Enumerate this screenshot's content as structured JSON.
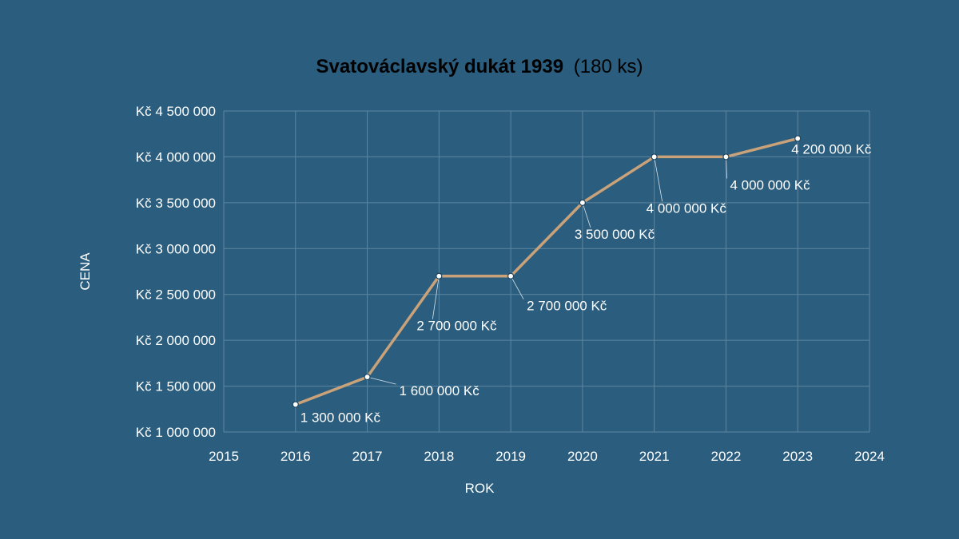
{
  "chart_data": {
    "type": "line",
    "title": "Svatováclavský dukát 1939",
    "subtitle": "(180 ks)",
    "xlabel": "ROK",
    "ylabel": "CENA",
    "x": [
      2016,
      2017,
      2018,
      2019,
      2020,
      2021,
      2022,
      2023
    ],
    "values": [
      1300000,
      1600000,
      2700000,
      2700000,
      3500000,
      4000000,
      4000000,
      4200000
    ],
    "data_labels": [
      "1 300 000 Kč",
      "1 600 000 Kč",
      "2 700 000 Kč",
      "2 700 000 Kč",
      "3 500 000 Kč",
      "4 000 000 Kč",
      "4 000 000 Kč",
      "4 200 000 Kč"
    ],
    "xlim": [
      2015,
      2024
    ],
    "ylim": [
      1000000,
      4500000
    ],
    "x_ticks": [
      "2015",
      "2016",
      "2017",
      "2018",
      "2019",
      "2020",
      "2021",
      "2022",
      "2023",
      "2024"
    ],
    "y_ticks": [
      "Kč 1 000 000",
      "Kč 1 500 000",
      "Kč 2 000 000",
      "Kč 2 500 000",
      "Kč 3 000 000",
      "Kč 3 500 000",
      "Kč 4 000 000",
      "Kč 4 500 000"
    ],
    "grid": true,
    "legend": "none",
    "colors": {
      "background": "#2a5d7e",
      "line": "#c9a27a",
      "grid": "#5d86a1",
      "text": "#ffffff"
    }
  }
}
